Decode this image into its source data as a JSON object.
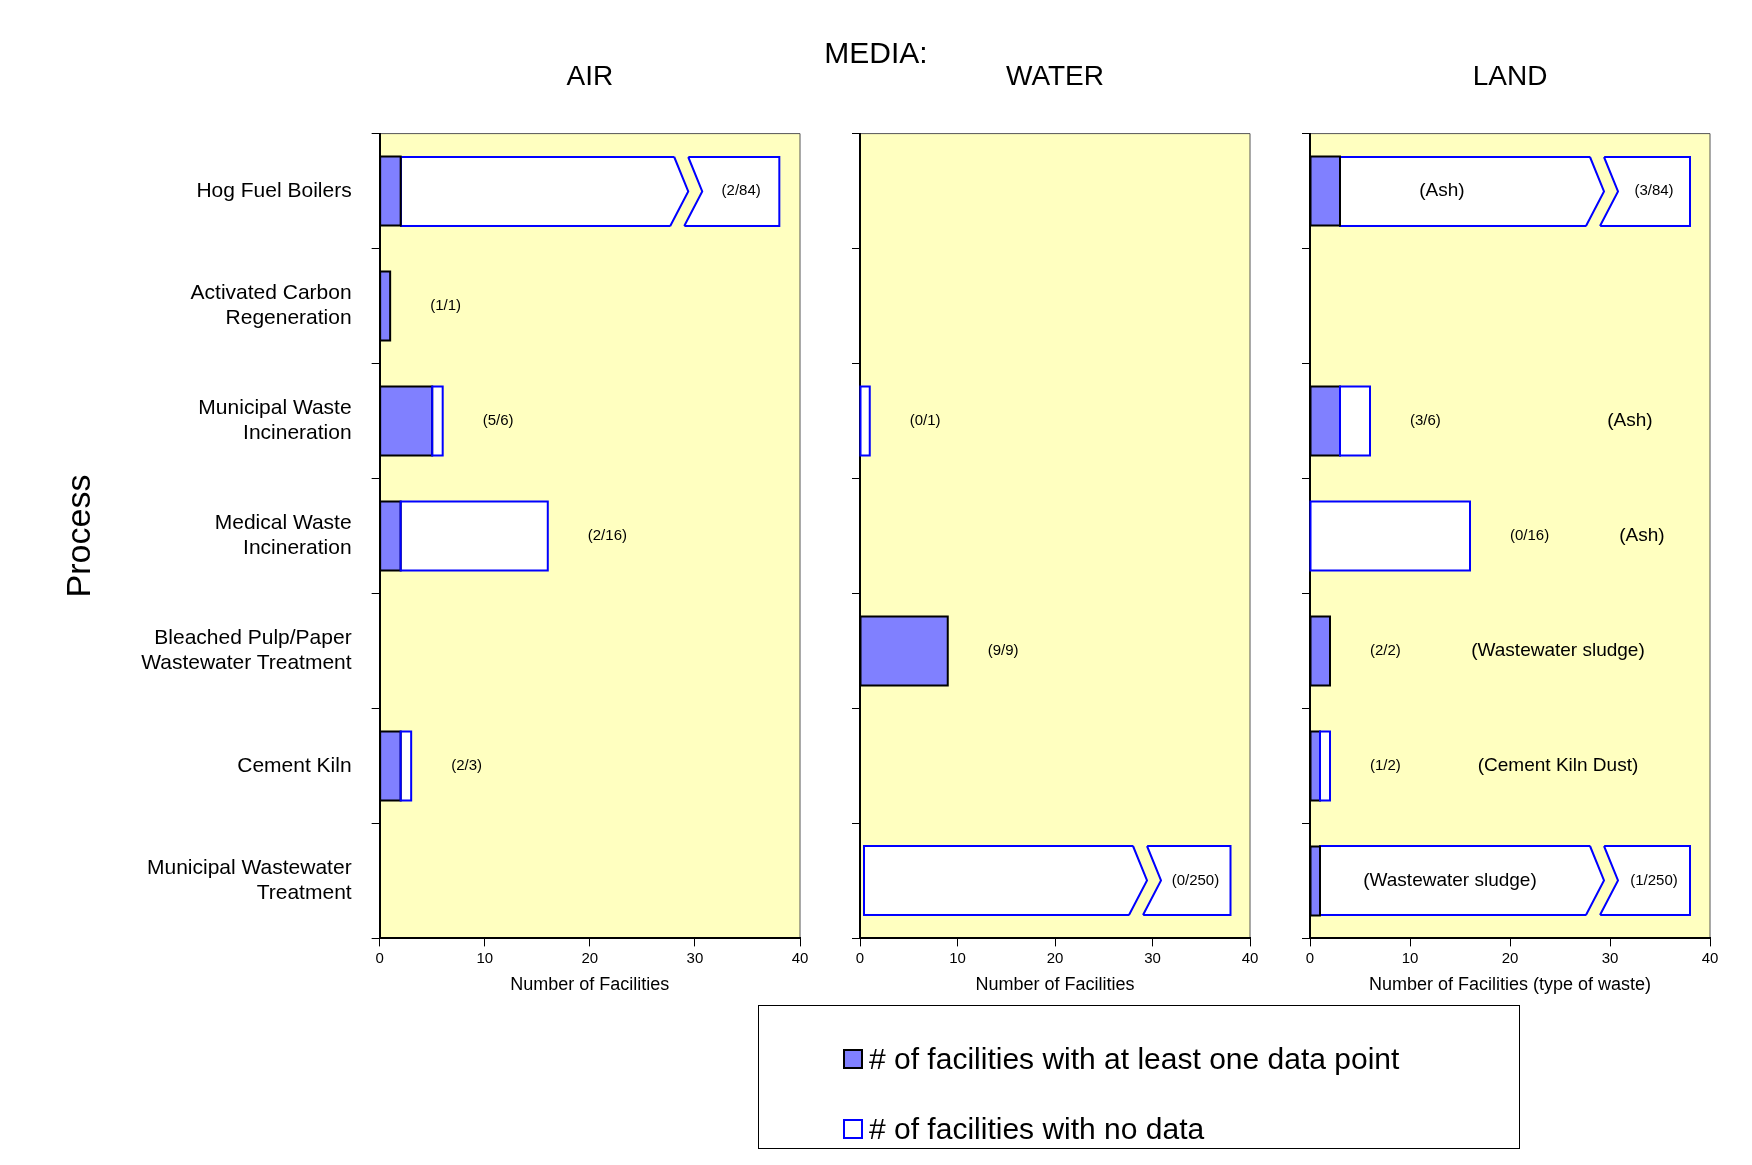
{
  "chart_data": [
    {
      "type": "bar",
      "orientation": "horizontal",
      "stacked": true,
      "title": "AIR",
      "ylabel": "Process",
      "xlabel": "Number of Facilities",
      "categories": [
        "Hog Fuel Boilers",
        "Activated Carbon Regeneration",
        "Municipal Waste Incineration",
        "Medical Waste Incineration",
        "Bleached Pulp/Paper Wastewater Treatment",
        "Cement Kiln",
        "Municipal Wastewater Treatment"
      ],
      "xlim": [
        0,
        40
      ],
      "xticks": [
        0,
        10,
        20,
        30,
        40
      ],
      "series": [
        {
          "color": "#8080ff",
          "values": [
            2,
            1,
            5,
            2,
            null,
            2,
            null
          ],
          "value_labels": [
            null,
            "(1/1)",
            null,
            null,
            null,
            null,
            null
          ]
        },
        {
          "color": "#ffffff",
          "values": [
            null,
            0,
            1,
            14,
            null,
            1,
            null
          ],
          "value_labels": [
            "(2/84)",
            null,
            "(5/6)",
            "(2/16)",
            null,
            "(2/3)",
            null
          ]
        }
      ]
    },
    {
      "type": "bar",
      "orientation": "horizontal",
      "stacked": true,
      "title": "WATER",
      "xlabel": "Number of Facilities",
      "subtitle": "MEDIA:",
      "tick_labels": "x",
      "legend": "bottom",
      "xlim": [
        0,
        40
      ],
      "xticks": [
        0,
        10,
        20,
        30,
        40
      ],
      "series": [
        {
          "name": "# of facilities with at least one data point",
          "color": "#8080ff",
          "values": [
            null,
            null,
            0,
            null,
            9,
            null,
            null
          ],
          "value_labels": [
            null,
            null,
            null,
            null,
            "(9/9)",
            null,
            null
          ]
        },
        {
          "name": "# of facilities with no data",
          "color": "#ffffff",
          "values": [
            null,
            null,
            1,
            null,
            0,
            null,
            null
          ],
          "value_labels": [
            null,
            null,
            "(0/1)",
            null,
            null,
            null,
            "(0/250)"
          ]
        }
      ]
    },
    {
      "type": "bar",
      "orientation": "horizontal",
      "stacked": true,
      "title": "LAND",
      "xlabel": "Number of Facilities (type of waste)",
      "tick_labels": "x",
      "xlim": [
        0,
        40
      ],
      "xticks": [
        0,
        10,
        20,
        30,
        40
      ],
      "annotations": [
        "(Ash)",
        "(Ash)",
        "(Ash)",
        "(Wastewater sludge)",
        "(Cement Kiln Dust)",
        "(Wastewater sludge)"
      ],
      "series": [
        {
          "color": "#8080ff",
          "values": [
            3,
            null,
            3,
            0,
            2,
            1,
            1
          ],
          "value_labels": [
            null,
            null,
            null,
            null,
            "(2/2)",
            null,
            null
          ]
        },
        {
          "color": "#ffffff",
          "values": [
            null,
            null,
            3,
            16,
            0,
            1,
            null
          ],
          "value_labels": [
            "(3/84)",
            null,
            "(3/6)",
            "(0/16)",
            null,
            "(1/2)",
            "(1/250)"
          ]
        }
      ]
    }
  ]
}
